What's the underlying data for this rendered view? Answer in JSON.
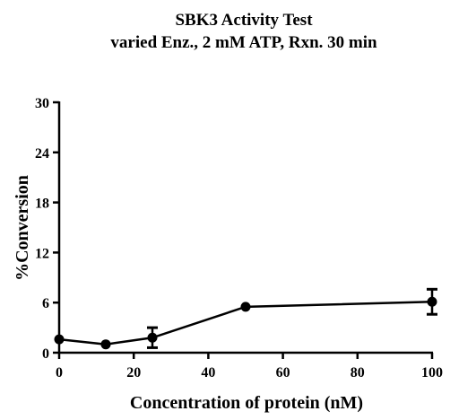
{
  "chart_data": {
    "type": "line",
    "title": "SBK3 Activity Test",
    "subtitle": "varied Enz., 2 mM ATP, Rxn. 30 min",
    "xlabel": "Concentration of protein (nM)",
    "ylabel": "%Conversion",
    "xlim": [
      0,
      100
    ],
    "ylim": [
      0,
      30
    ],
    "xticks": [
      0,
      20,
      40,
      60,
      80,
      100
    ],
    "yticks": [
      0,
      6,
      12,
      18,
      24,
      30
    ],
    "grid": false,
    "series": [
      {
        "x": [
          0,
          12.5,
          25,
          50,
          100
        ],
        "y": [
          1.6,
          1.0,
          1.8,
          5.5,
          6.1
        ],
        "yerr": [
          0,
          0,
          1.2,
          0,
          1.5
        ]
      }
    ],
    "colors": {
      "line": "#000000",
      "marker": "#000000"
    }
  }
}
